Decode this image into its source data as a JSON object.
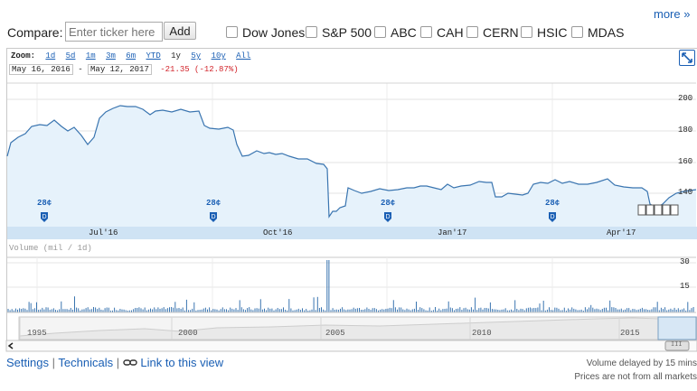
{
  "compare": {
    "label": "Compare:",
    "input_placeholder": "Enter ticker here",
    "add_label": "Add",
    "tickers": [
      "Dow Jones",
      "S&P 500",
      "ABC",
      "CAH",
      "CERN",
      "HSIC",
      "MDAS"
    ],
    "more_label": "more »"
  },
  "zoom": {
    "label": "Zoom:",
    "options": [
      "1d",
      "5d",
      "1m",
      "3m",
      "6m",
      "YTD",
      "1y",
      "5y",
      "10y",
      "All"
    ],
    "selected": "1y"
  },
  "range": {
    "start": "May 16, 2016",
    "dash": "-",
    "end": "May 12, 2017",
    "change": "-21.35 (-12.87%)"
  },
  "price_chart": {
    "y_ticks": [
      "200",
      "180",
      "160",
      "140"
    ],
    "x_labels": [
      "Jul'16",
      "Oct'16",
      "Jan'17",
      "Apr'17"
    ],
    "dividend_flags": [
      "28¢",
      "28¢",
      "28¢",
      "28¢"
    ],
    "dividend_marker": "D",
    "line_color": "#3a75b0",
    "fill_color": "#e6f2fb"
  },
  "volume_chart": {
    "label": "Volume (mil / 1d)",
    "y_ticks": [
      "30",
      "15"
    ]
  },
  "overview": {
    "years": [
      "1995",
      "2000",
      "2005",
      "2010",
      "2015"
    ],
    "grip_mark": "III"
  },
  "footer": {
    "settings": "Settings",
    "sep": "|",
    "technicals": "Technicals",
    "link_label": "Link to this view",
    "note1": "Volume delayed by 15 mins",
    "note2": "Prices are not from all markets"
  }
}
